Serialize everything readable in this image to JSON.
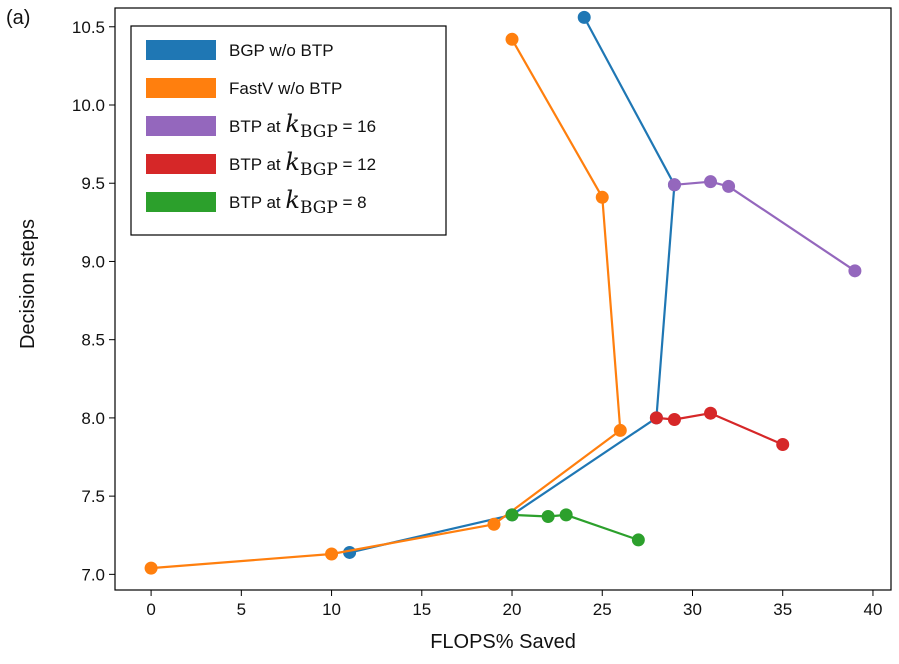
{
  "chart_data": {
    "type": "line",
    "panel_label": "(a)",
    "xlabel": "FLOPS% Saved",
    "ylabel": "Decision steps",
    "xlim": [
      -2,
      41
    ],
    "ylim": [
      6.9,
      10.62
    ],
    "xticks": [
      0,
      5,
      10,
      15,
      20,
      25,
      30,
      35,
      40
    ],
    "yticks": [
      7.0,
      7.5,
      8.0,
      8.5,
      9.0,
      9.5,
      10.0,
      10.5
    ],
    "ytick_labels": [
      "7.0",
      "7.5",
      "8.0",
      "8.5",
      "9.0",
      "9.5",
      "10.0",
      "10.5"
    ],
    "legend_position": "top-left",
    "series": [
      {
        "name": "BGP w/o BTP",
        "legend": {
          "prefix": "BGP w/o BTP"
        },
        "color": "#1f77b4",
        "x": [
          24,
          29,
          28,
          20,
          11
        ],
        "y": [
          10.56,
          9.49,
          8.0,
          7.38,
          7.14
        ]
      },
      {
        "name": "FastV w/o BTP",
        "legend": {
          "prefix": "FastV w/o BTP"
        },
        "color": "#ff7f0e",
        "x": [
          20,
          25,
          26,
          19,
          10,
          0
        ],
        "y": [
          10.42,
          9.41,
          7.92,
          7.32,
          7.13,
          7.04
        ]
      },
      {
        "name": "BTP at k_BGP = 16",
        "legend": {
          "prefix": "BTP at",
          "var": "k",
          "sub": "BGP",
          "suffix": "= 16"
        },
        "color": "#9467bd",
        "x": [
          29,
          31,
          32,
          39
        ],
        "y": [
          9.49,
          9.51,
          9.48,
          8.94
        ]
      },
      {
        "name": "BTP at k_BGP = 12",
        "legend": {
          "prefix": "BTP at",
          "var": "k",
          "sub": "BGP",
          "suffix": "= 12"
        },
        "color": "#d62728",
        "x": [
          28,
          29,
          31,
          35
        ],
        "y": [
          8.0,
          7.99,
          8.03,
          7.83
        ]
      },
      {
        "name": "BTP at k_BGP = 8",
        "legend": {
          "prefix": "BTP at",
          "var": "k",
          "sub": "BGP",
          "suffix": "= 8"
        },
        "color": "#2ca02c",
        "x": [
          20,
          22,
          23,
          27
        ],
        "y": [
          7.38,
          7.37,
          7.38,
          7.22
        ]
      }
    ]
  }
}
